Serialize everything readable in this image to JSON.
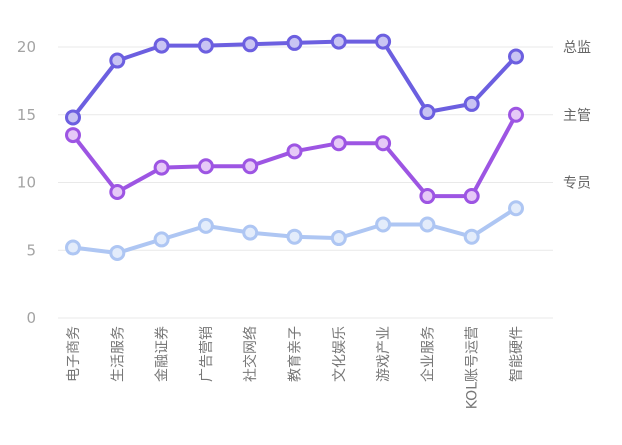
{
  "chart_data": {
    "type": "line",
    "title": "",
    "xlabel": "",
    "ylabel": "",
    "ylim": [
      0,
      22
    ],
    "yticks": [
      "0",
      "5",
      "10",
      "15",
      "20"
    ],
    "grid": true,
    "legend": "right-end-labels",
    "categories": [
      "电子商务",
      "生活服务",
      "金融证券",
      "广告营销",
      "社交网络",
      "教育亲子",
      "文化娱乐",
      "游戏产业",
      "企业服务",
      "KOL账号运营",
      "智能硬件"
    ],
    "series": [
      {
        "name": "总监",
        "color": "#6c5fe0",
        "fill": "#c9c4f3",
        "values": [
          14.8,
          19.0,
          20.1,
          20.1,
          20.2,
          20.3,
          20.4,
          20.4,
          15.2,
          15.8,
          19.3
        ]
      },
      {
        "name": "主管",
        "color": "#9d55e3",
        "fill": "#e6c9f7",
        "values": [
          13.5,
          9.3,
          11.1,
          11.2,
          11.2,
          12.3,
          12.9,
          12.9,
          9.0,
          9.0,
          15.0
        ]
      },
      {
        "name": "专员",
        "color": "#aec6f3",
        "fill": "#e3ecfb",
        "values": [
          5.2,
          4.8,
          5.8,
          6.8,
          6.3,
          6.0,
          5.9,
          6.9,
          6.9,
          6.0,
          8.1
        ]
      }
    ]
  }
}
